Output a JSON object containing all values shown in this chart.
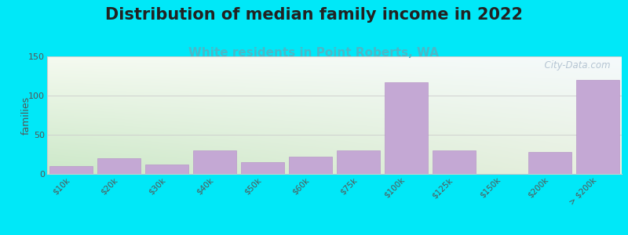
{
  "title": "Distribution of median family income in 2022",
  "subtitle": "White residents in Point Roberts, WA",
  "categories": [
    "$10k",
    "$20k",
    "$30k",
    "$40k",
    "$50k",
    "$60k",
    "$75k",
    "$100k",
    "$125k",
    "$150k",
    "$200k",
    "> $200k"
  ],
  "values": [
    10,
    20,
    12,
    30,
    15,
    22,
    30,
    117,
    30,
    0,
    28,
    120
  ],
  "bar_color": "#c4a8d4",
  "bar_edgecolor": "#b898c8",
  "background_outer": "#00e8f8",
  "ylim": [
    0,
    150
  ],
  "yticks": [
    0,
    50,
    100,
    150
  ],
  "ylabel": "families",
  "title_fontsize": 15,
  "subtitle_fontsize": 11,
  "subtitle_color": "#4ab8c8",
  "watermark": "  City-Data.com",
  "watermark_color": "#aabbcc",
  "chart_bg_topleft": "#e8f5e0",
  "chart_bg_topright": "#f5fafc",
  "chart_bg_bottomleft": "#d8ecc8",
  "chart_bg_bottomright": "#eef5f8"
}
